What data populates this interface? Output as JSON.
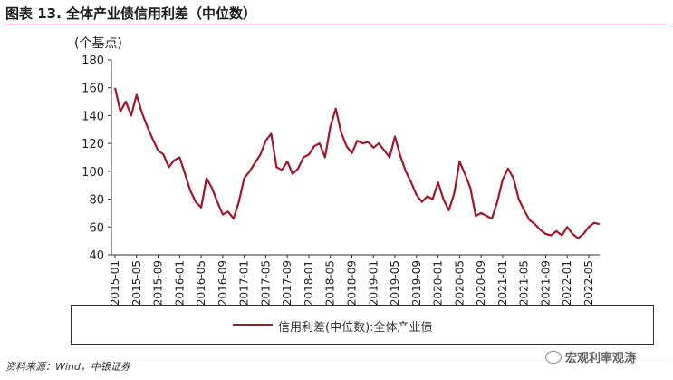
{
  "header": {
    "title": "图表 13. 全体产业债信用利差（中位数）"
  },
  "chart_data": {
    "type": "line",
    "ylabel": "(个基点)",
    "ylim": [
      40,
      180
    ],
    "yticks": [
      40,
      60,
      80,
      100,
      120,
      140,
      160,
      180
    ],
    "x_tick_labels": [
      "2015-01",
      "2015-05",
      "2015-09",
      "2016-01",
      "2016-05",
      "2016-09",
      "2017-01",
      "2017-05",
      "2017-09",
      "2018-01",
      "2018-05",
      "2018-09",
      "2019-01",
      "2019-05",
      "2019-09",
      "2020-01",
      "2020-05",
      "2020-09",
      "2021-01",
      "2021-05",
      "2021-09",
      "2022-01",
      "2022-05"
    ],
    "grid": false,
    "legend_position": "bottom",
    "series": [
      {
        "name": "信用利差(中位数):全体产业债",
        "color": "#a0182d",
        "x": [
          "2015-01",
          "2015-02",
          "2015-03",
          "2015-04",
          "2015-05",
          "2015-06",
          "2015-07",
          "2015-08",
          "2015-09",
          "2015-10",
          "2015-11",
          "2015-12",
          "2016-01",
          "2016-02",
          "2016-03",
          "2016-04",
          "2016-05",
          "2016-06",
          "2016-07",
          "2016-08",
          "2016-09",
          "2016-10",
          "2016-11",
          "2016-12",
          "2017-01",
          "2017-02",
          "2017-03",
          "2017-04",
          "2017-05",
          "2017-06",
          "2017-07",
          "2017-08",
          "2017-09",
          "2017-10",
          "2017-11",
          "2017-12",
          "2018-01",
          "2018-02",
          "2018-03",
          "2018-04",
          "2018-05",
          "2018-06",
          "2018-07",
          "2018-08",
          "2018-09",
          "2018-10",
          "2018-11",
          "2018-12",
          "2019-01",
          "2019-02",
          "2019-03",
          "2019-04",
          "2019-05",
          "2019-06",
          "2019-07",
          "2019-08",
          "2019-09",
          "2019-10",
          "2019-11",
          "2019-12",
          "2020-01",
          "2020-02",
          "2020-03",
          "2020-04",
          "2020-05",
          "2020-06",
          "2020-07",
          "2020-08",
          "2020-09",
          "2020-10",
          "2020-11",
          "2020-12",
          "2021-01",
          "2021-02",
          "2021-03",
          "2021-04",
          "2021-05",
          "2021-06",
          "2021-07",
          "2021-08",
          "2021-09",
          "2021-10",
          "2021-11",
          "2021-12",
          "2022-01",
          "2022-02",
          "2022-03",
          "2022-04",
          "2022-05",
          "2022-06",
          "2022-07"
        ],
        "values": [
          160,
          143,
          150,
          140,
          155,
          142,
          132,
          123,
          115,
          112,
          103,
          108,
          110,
          98,
          86,
          78,
          74,
          95,
          88,
          78,
          69,
          71,
          66,
          78,
          95,
          100,
          106,
          112,
          122,
          127,
          103,
          101,
          107,
          98,
          102,
          110,
          112,
          118,
          120,
          110,
          132,
          145,
          128,
          118,
          113,
          122,
          120,
          121,
          117,
          120,
          115,
          110,
          125,
          111,
          100,
          92,
          83,
          78,
          82,
          80,
          92,
          80,
          72,
          84,
          107,
          98,
          88,
          68,
          70,
          68,
          66,
          78,
          94,
          102,
          95,
          80,
          72,
          65,
          62,
          58,
          55,
          54,
          57,
          54,
          60,
          55,
          52,
          55,
          60,
          63,
          62
        ]
      }
    ]
  },
  "legend": {
    "label": "信用利差(中位数):全体产业债"
  },
  "source": "资料来源：Wind，中银证券",
  "watermark": "宏观利率观涛"
}
